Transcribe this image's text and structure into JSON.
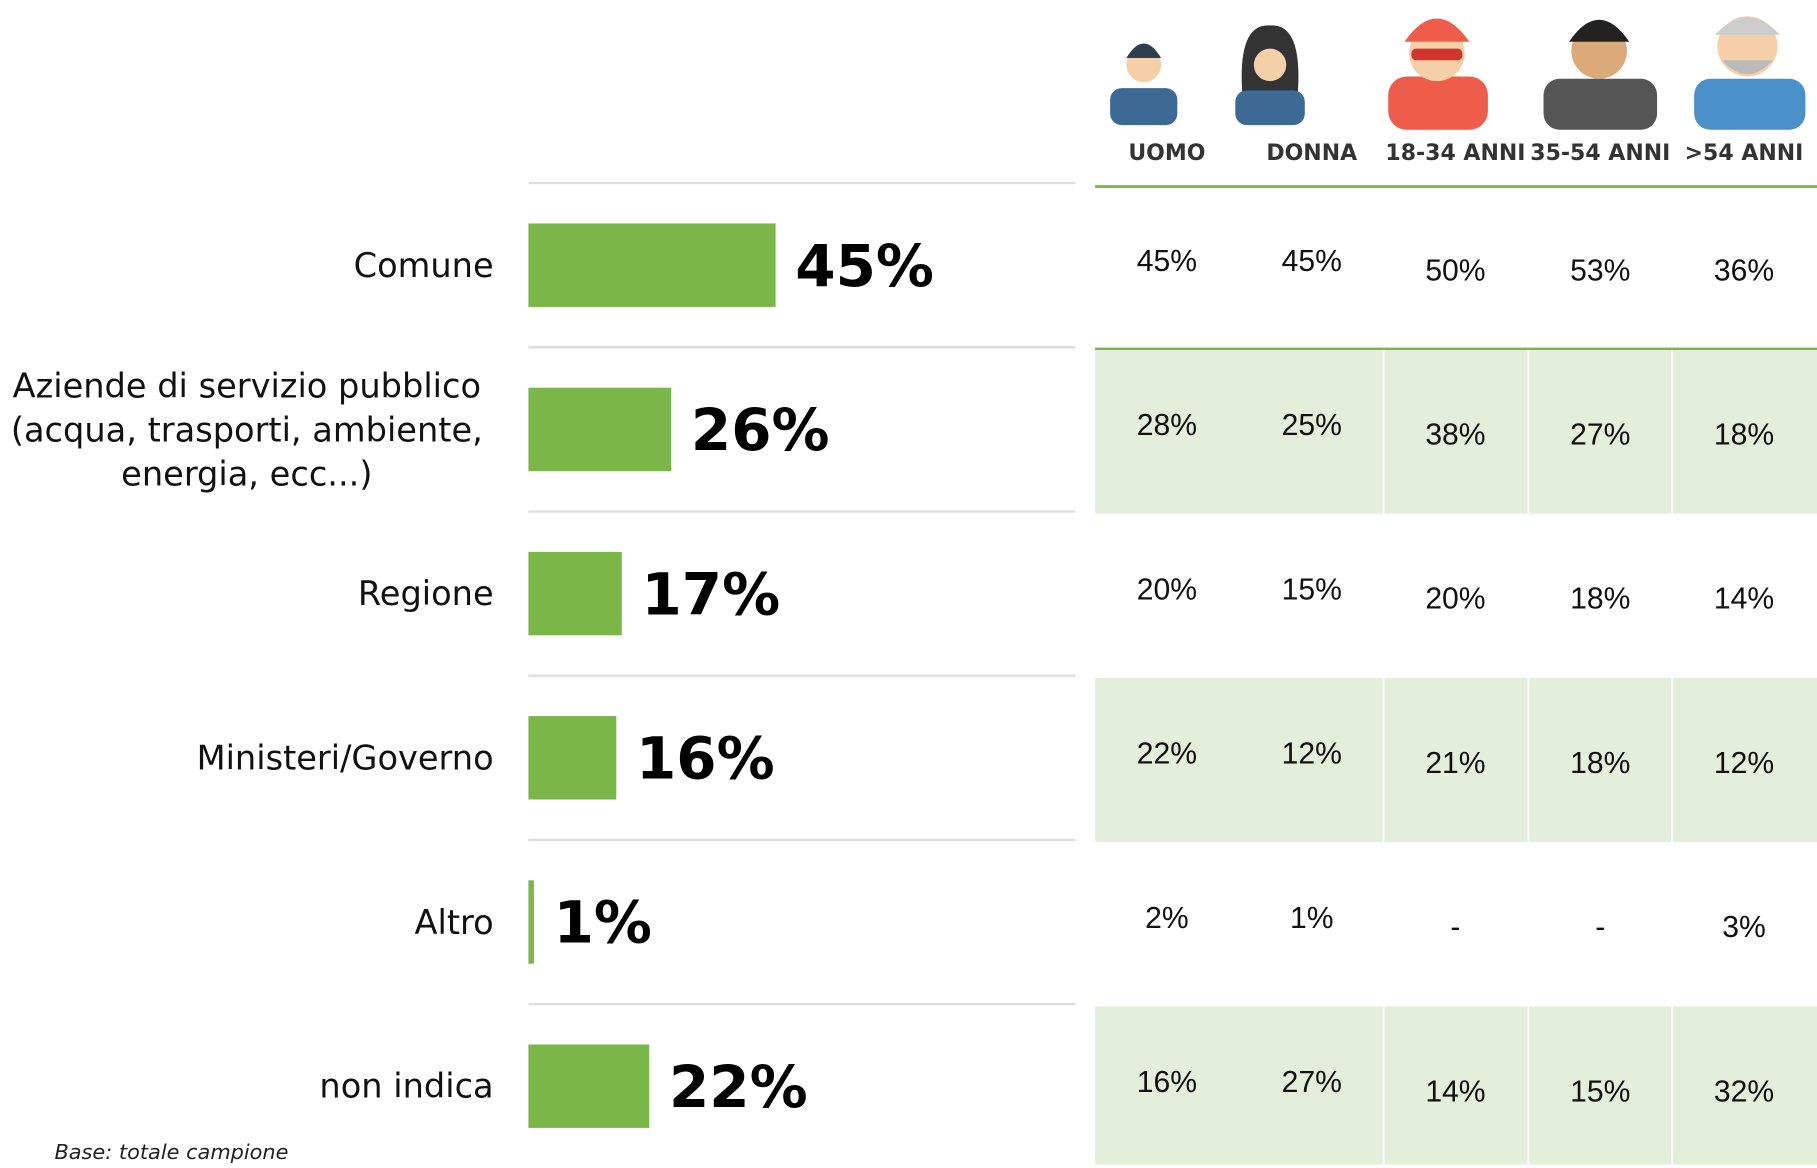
{
  "chart_data": {
    "type": "bar",
    "orientation": "horizontal",
    "categories": [
      "Comune",
      "Aziende di servizio pubblico (acqua, trasporti, ambiente, energia, ecc...)",
      "Regione",
      "Ministeri/Governo",
      "Altro",
      "non indica"
    ],
    "values": [
      45,
      26,
      17,
      16,
      1,
      22
    ],
    "value_labels": [
      "45%",
      "26%",
      "17%",
      "16%",
      "1%",
      "22%"
    ],
    "color": "#7ab648"
  },
  "table": {
    "columns": [
      "UOMO",
      "DONNA",
      "18-34 ANNI",
      "35-54 ANNI",
      ">54 ANNI"
    ],
    "rows": [
      [
        "45%",
        "45%",
        "50%",
        "53%",
        "36%"
      ],
      [
        "28%",
        "25%",
        "38%",
        "27%",
        "18%"
      ],
      [
        "20%",
        "15%",
        "20%",
        "18%",
        "14%"
      ],
      [
        "22%",
        "12%",
        "21%",
        "18%",
        "12%"
      ],
      [
        "2%",
        "1%",
        "-",
        "-",
        "3%"
      ],
      [
        "16%",
        "27%",
        "14%",
        "15%",
        "32%"
      ]
    ]
  },
  "footnote": "Base: totale campione"
}
